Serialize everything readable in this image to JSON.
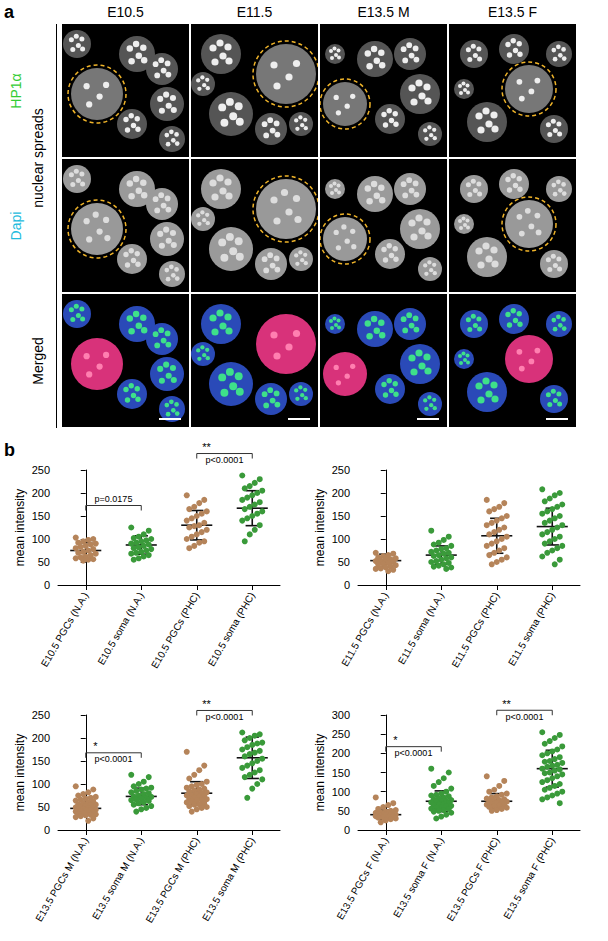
{
  "images": {
    "label": "a",
    "columns": [
      "E10.5",
      "E11.5",
      "E13.5 M",
      "E13.5 F"
    ],
    "rows": [
      "HP1α",
      "Dapi",
      "Merged"
    ],
    "side_label": "nuclear spreads"
  },
  "chart_panel_label": "b",
  "chart_data": [
    {
      "type": "scatter",
      "ylabel": "mean intensity",
      "ylim": [
        0,
        250
      ],
      "yticks": [
        0,
        50,
        100,
        150,
        200,
        250
      ],
      "grid": false,
      "categories": [
        "E10.5 PGCs (N.A.)",
        "E10.5 soma (N.A.)",
        "E10.5 PGCs (PHC)",
        "E10.5 soma (PHC)"
      ],
      "colors": [
        "#b5845a",
        "#3a9a3a",
        "#b5845a",
        "#3a9a3a"
      ],
      "values": [
        [
          103,
          100,
          98,
          95,
          92,
          90,
          88,
          85,
          83,
          80,
          78,
          75,
          72,
          70,
          68,
          65,
          62,
          60,
          58,
          56,
          55,
          53
        ],
        [
          125,
          118,
          110,
          105,
          102,
          100,
          97,
          95,
          92,
          90,
          88,
          85,
          82,
          80,
          78,
          75,
          72,
          70,
          68,
          65,
          62,
          58,
          55
        ],
        [
          195,
          185,
          178,
          170,
          165,
          160,
          155,
          150,
          145,
          140,
          135,
          130,
          128,
          125,
          120,
          115,
          110,
          105,
          100,
          95,
          92,
          85,
          80
        ],
        [
          238,
          230,
          222,
          215,
          210,
          205,
          200,
          195,
          190,
          185,
          180,
          175,
          170,
          165,
          160,
          155,
          150,
          145,
          140,
          130,
          120,
          110,
          95
        ]
      ],
      "mean": [
        75,
        87,
        130,
        167
      ],
      "sd": [
        17,
        20,
        32,
        38
      ],
      "annotations": [
        {
          "between": [
            0,
            1
          ],
          "text": "p=0.0175"
        },
        {
          "between": [
            2,
            3
          ],
          "stars": "**",
          "text": "p<0.0001"
        }
      ]
    },
    {
      "type": "scatter",
      "ylabel": "mean intensity",
      "ylim": [
        0,
        250
      ],
      "yticks": [
        0,
        50,
        100,
        150,
        200,
        250
      ],
      "grid": false,
      "categories": [
        "E11.5 PGCs (N.A.)",
        "E11.5 soma (N.A.)",
        "E11.5 PGCs (PHC)",
        "E11.5 soma (PHC)"
      ],
      "colors": [
        "#b5845a",
        "#3a9a3a",
        "#b5845a",
        "#3a9a3a"
      ],
      "values": [
        [
          70,
          68,
          65,
          63,
          60,
          58,
          56,
          55,
          53,
          52,
          50,
          48,
          46,
          45,
          43,
          40,
          38,
          36,
          35,
          33,
          30
        ],
        [
          118,
          105,
          98,
          92,
          88,
          85,
          80,
          78,
          75,
          72,
          70,
          68,
          65,
          63,
          60,
          58,
          55,
          52,
          50,
          48,
          45,
          42,
          40,
          38,
          35
        ],
        [
          185,
          178,
          170,
          165,
          160,
          150,
          145,
          140,
          135,
          130,
          125,
          120,
          115,
          110,
          105,
          100,
          95,
          90,
          85,
          80,
          75,
          70,
          65,
          60,
          55,
          50,
          45
        ],
        [
          208,
          200,
          195,
          188,
          182,
          175,
          170,
          165,
          160,
          155,
          150,
          145,
          140,
          135,
          130,
          125,
          120,
          115,
          110,
          105,
          100,
          95,
          90,
          85,
          80,
          75,
          70,
          62,
          55,
          45
        ]
      ],
      "mean": [
        53,
        65,
        107,
        127
      ],
      "sd": [
        14,
        20,
        38,
        40
      ],
      "annotations": []
    },
    {
      "type": "scatter",
      "ylabel": "mean intensity",
      "ylim": [
        0,
        250
      ],
      "yticks": [
        0,
        50,
        100,
        150,
        200,
        250
      ],
      "grid": false,
      "categories": [
        "E13.5 PGCs M (N.A.)",
        "E13.5 soma M (N.A.)",
        "E13.5 PGCs M (PHC)",
        "E13.5 soma M (PHC)"
      ],
      "colors": [
        "#b5845a",
        "#3a9a3a",
        "#b5845a",
        "#3a9a3a"
      ],
      "values": [
        [
          95,
          88,
          82,
          78,
          75,
          72,
          70,
          68,
          66,
          64,
          62,
          60,
          58,
          56,
          55,
          54,
          52,
          50,
          49,
          48,
          47,
          46,
          45,
          44,
          43,
          42,
          41,
          40,
          38,
          37,
          36,
          35,
          34,
          33,
          32,
          30,
          28,
          25,
          20
        ],
        [
          120,
          115,
          105,
          100,
          95,
          92,
          90,
          88,
          85,
          82,
          80,
          78,
          75,
          73,
          72,
          70,
          68,
          66,
          65,
          63,
          60,
          58,
          55,
          52,
          48,
          45,
          40
        ],
        [
          170,
          140,
          130,
          120,
          112,
          105,
          100,
          98,
          95,
          92,
          90,
          88,
          86,
          84,
          82,
          80,
          78,
          76,
          75,
          74,
          72,
          70,
          68,
          67,
          65,
          64,
          62,
          60,
          58,
          56,
          55,
          52,
          50,
          48,
          45,
          40
        ],
        [
          212,
          208,
          205,
          200,
          195,
          190,
          188,
          185,
          180,
          175,
          172,
          168,
          165,
          160,
          155,
          150,
          145,
          140,
          135,
          130,
          125,
          120,
          115,
          110,
          100,
          90,
          70
        ]
      ],
      "mean": [
        47,
        73,
        80,
        157
      ],
      "sd": [
        15,
        18,
        25,
        45
      ],
      "annotations": [
        {
          "between": [
            0,
            1
          ],
          "stars": "*",
          "text": "p<0.0001"
        },
        {
          "between": [
            2,
            3
          ],
          "stars": "**",
          "text": "p<0.0001"
        }
      ]
    },
    {
      "type": "scatter",
      "ylabel": "mean intensity",
      "ylim": [
        0,
        300
      ],
      "yticks": [
        0,
        50,
        100,
        150,
        200,
        250,
        300
      ],
      "grid": false,
      "categories": [
        "E13.5 PGCs F (N.A.)",
        "E13.5 soma F (N.A.)",
        "E13.5 PGCs F (PHC)",
        "E13.5 soma F (PHC)"
      ],
      "colors": [
        "#b5845a",
        "#3a9a3a",
        "#b5845a",
        "#3a9a3a"
      ],
      "values": [
        [
          85,
          70,
          65,
          60,
          55,
          52,
          50,
          48,
          46,
          45,
          44,
          43,
          42,
          41,
          40,
          39,
          38,
          37,
          36,
          35,
          34,
          33,
          32,
          30,
          28,
          25,
          20
        ],
        [
          160,
          150,
          135,
          125,
          115,
          108,
          100,
          95,
          92,
          90,
          88,
          85,
          82,
          80,
          78,
          76,
          75,
          74,
          72,
          70,
          68,
          66,
          65,
          63,
          62,
          60,
          58,
          56,
          55,
          52,
          50,
          48,
          45,
          40,
          35,
          30
        ],
        [
          140,
          128,
          115,
          105,
          100,
          95,
          92,
          88,
          85,
          82,
          80,
          78,
          76,
          75,
          74,
          72,
          70,
          68,
          66,
          65,
          63,
          62,
          60,
          58,
          55,
          52,
          50
        ],
        [
          255,
          248,
          240,
          232,
          225,
          218,
          210,
          205,
          200,
          195,
          190,
          185,
          180,
          178,
          175,
          170,
          168,
          165,
          160,
          158,
          155,
          150,
          148,
          145,
          140,
          135,
          130,
          125,
          120,
          115,
          110,
          105,
          100,
          95,
          90,
          85,
          80,
          70
        ]
      ],
      "mean": [
        40,
        75,
        75,
        160
      ],
      "sd": [
        12,
        27,
        20,
        48
      ],
      "annotations": [
        {
          "between": [
            0,
            1
          ],
          "stars": "*",
          "text": "p<0.0001"
        },
        {
          "between": [
            2,
            3
          ],
          "stars": "**",
          "text": "p<0.0001"
        }
      ]
    }
  ]
}
